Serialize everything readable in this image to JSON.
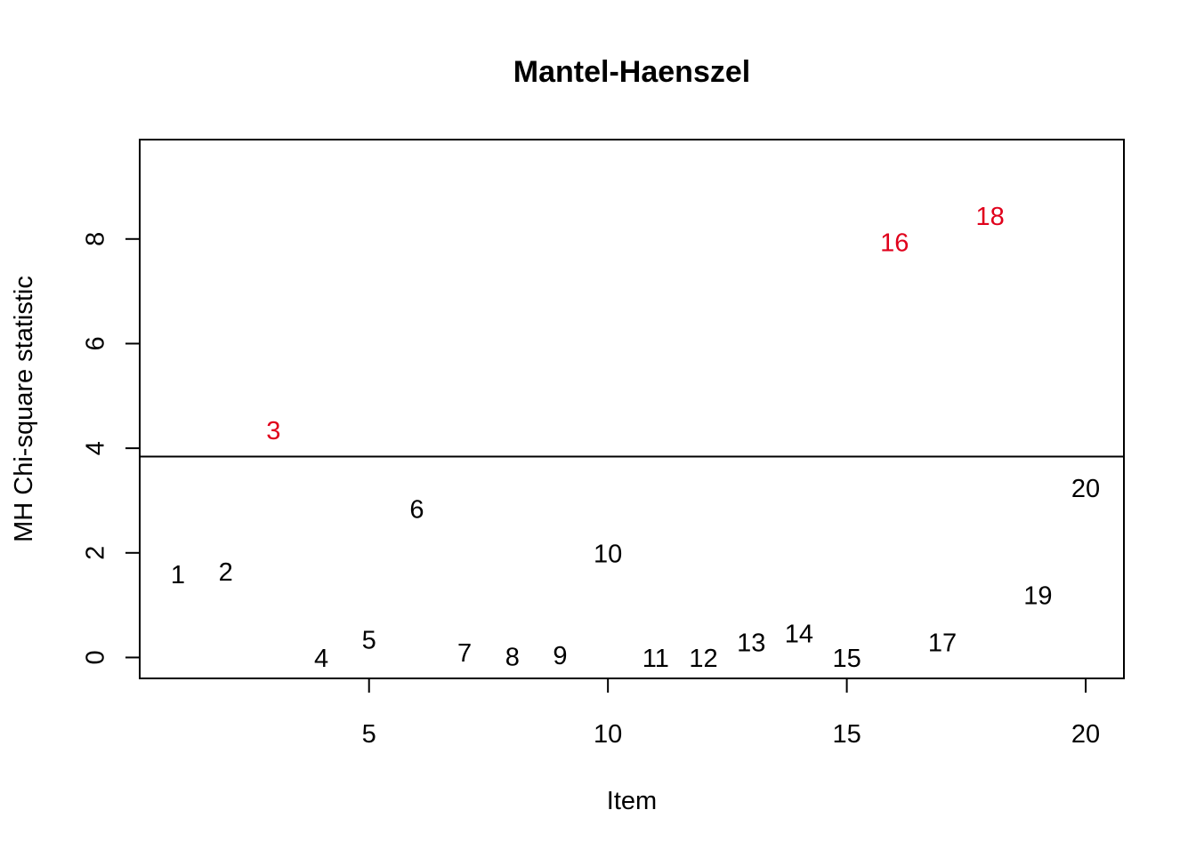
{
  "chart_data": {
    "type": "scatter",
    "title": "Mantel-Haenszel",
    "xlabel": "Item",
    "ylabel": "MH Chi-square statistic",
    "xlim": [
      0.2,
      20.8
    ],
    "ylim": [
      -0.4,
      9.9
    ],
    "x_ticks": [
      5,
      10,
      15,
      20
    ],
    "y_ticks": [
      0,
      2,
      4,
      6,
      8
    ],
    "grid": false,
    "legend": "none",
    "threshold_line": {
      "y": 3.84
    },
    "colors": {
      "normal_point": "#000000",
      "flagged_point": "#e0001b",
      "axis": "#000000",
      "threshold": "#000000"
    },
    "points": [
      {
        "label": "1",
        "x": 1,
        "y": 1.55,
        "flagged": false
      },
      {
        "label": "2",
        "x": 2,
        "y": 1.6,
        "flagged": false
      },
      {
        "label": "3",
        "x": 3,
        "y": 4.3,
        "flagged": true
      },
      {
        "label": "4",
        "x": 4,
        "y": -0.05,
        "flagged": false
      },
      {
        "label": "5",
        "x": 5,
        "y": 0.3,
        "flagged": false
      },
      {
        "label": "6",
        "x": 6,
        "y": 2.8,
        "flagged": false
      },
      {
        "label": "7",
        "x": 7,
        "y": 0.05,
        "flagged": false
      },
      {
        "label": "8",
        "x": 8,
        "y": -0.02,
        "flagged": false
      },
      {
        "label": "9",
        "x": 9,
        "y": 0.0,
        "flagged": false
      },
      {
        "label": "10",
        "x": 10,
        "y": 1.95,
        "flagged": false
      },
      {
        "label": "11",
        "x": 11,
        "y": -0.05,
        "flagged": false
      },
      {
        "label": "12",
        "x": 12,
        "y": -0.05,
        "flagged": false
      },
      {
        "label": "13",
        "x": 13,
        "y": 0.25,
        "flagged": false
      },
      {
        "label": "14",
        "x": 14,
        "y": 0.42,
        "flagged": false
      },
      {
        "label": "15",
        "x": 15,
        "y": -0.05,
        "flagged": false
      },
      {
        "label": "16",
        "x": 16,
        "y": 7.9,
        "flagged": true
      },
      {
        "label": "17",
        "x": 17,
        "y": 0.25,
        "flagged": false
      },
      {
        "label": "18",
        "x": 18,
        "y": 8.4,
        "flagged": true
      },
      {
        "label": "19",
        "x": 19,
        "y": 1.15,
        "flagged": false
      },
      {
        "label": "20",
        "x": 20,
        "y": 3.2,
        "flagged": false
      }
    ]
  }
}
